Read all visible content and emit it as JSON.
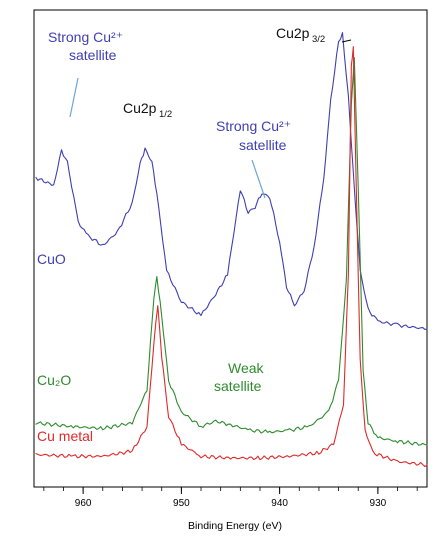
{
  "chart_data": {
    "type": "line",
    "xlabel": "Binding Energy (eV)",
    "xlim": [
      965,
      925
    ],
    "x_reversed": true,
    "x_ticks": [
      960,
      950,
      940,
      930
    ],
    "y_ticks_shown": false,
    "grid": false,
    "legend": "none",
    "series": [
      {
        "name": "CuO",
        "color": "#3f3fb3",
        "points": [
          [
            964.8,
            0.78
          ],
          [
            963.0,
            0.74
          ],
          [
            962.2,
            0.92
          ],
          [
            961.6,
            0.86
          ],
          [
            960.5,
            0.55
          ],
          [
            959.5,
            0.48
          ],
          [
            958.0,
            0.43
          ],
          [
            956.5,
            0.5
          ],
          [
            955.0,
            0.65
          ],
          [
            954.2,
            0.85
          ],
          [
            953.7,
            0.93
          ],
          [
            953.0,
            0.86
          ],
          [
            952.5,
            0.7
          ],
          [
            951.5,
            0.3
          ],
          [
            950.0,
            0.14
          ],
          [
            948.0,
            0.07
          ],
          [
            946.5,
            0.18
          ],
          [
            945.3,
            0.28
          ],
          [
            944.0,
            0.72
          ],
          [
            943.2,
            0.6
          ],
          [
            942.5,
            0.63
          ],
          [
            941.8,
            0.7
          ],
          [
            941.0,
            0.68
          ],
          [
            940.0,
            0.45
          ],
          [
            939.3,
            0.22
          ],
          [
            938.5,
            0.12
          ],
          [
            937.5,
            0.2
          ],
          [
            936.5,
            0.42
          ],
          [
            935.5,
            0.78
          ],
          [
            934.8,
            1.18
          ],
          [
            934.0,
            1.48
          ],
          [
            933.6,
            1.52
          ],
          [
            933.0,
            1.2
          ],
          [
            932.5,
            0.8
          ],
          [
            931.8,
            0.3
          ],
          [
            931.0,
            0.1
          ],
          [
            930.0,
            0.04
          ],
          [
            928.0,
            0.02
          ],
          [
            925.0,
            0.0
          ]
        ]
      },
      {
        "name": "Cu2O",
        "color": "#2e8b2e",
        "points": [
          [
            964.8,
            0.12
          ],
          [
            961.0,
            0.1
          ],
          [
            958.0,
            0.09
          ],
          [
            955.0,
            0.12
          ],
          [
            953.5,
            0.3
          ],
          [
            952.8,
            0.8
          ],
          [
            952.5,
            0.92
          ],
          [
            952.0,
            0.7
          ],
          [
            951.3,
            0.35
          ],
          [
            950.0,
            0.18
          ],
          [
            948.0,
            0.1
          ],
          [
            946.5,
            0.13
          ],
          [
            945.0,
            0.11
          ],
          [
            943.0,
            0.08
          ],
          [
            941.0,
            0.07
          ],
          [
            939.0,
            0.08
          ],
          [
            937.0,
            0.1
          ],
          [
            935.0,
            0.18
          ],
          [
            934.0,
            0.35
          ],
          [
            933.2,
            0.9
          ],
          [
            932.7,
            1.85
          ],
          [
            932.4,
            2.1
          ],
          [
            932.0,
            1.4
          ],
          [
            931.5,
            0.4
          ],
          [
            931.0,
            0.12
          ],
          [
            930.0,
            0.04
          ],
          [
            928.0,
            0.02
          ],
          [
            925.0,
            0.0
          ]
        ]
      },
      {
        "name": "Cu metal",
        "color": "#dd2a2a",
        "points": [
          [
            964.8,
            0.06
          ],
          [
            961.0,
            0.05
          ],
          [
            958.0,
            0.05
          ],
          [
            955.0,
            0.08
          ],
          [
            953.5,
            0.22
          ],
          [
            952.8,
            0.7
          ],
          [
            952.4,
            0.92
          ],
          [
            952.0,
            0.62
          ],
          [
            951.3,
            0.28
          ],
          [
            950.0,
            0.12
          ],
          [
            948.0,
            0.05
          ],
          [
            945.0,
            0.04
          ],
          [
            942.0,
            0.04
          ],
          [
            939.0,
            0.05
          ],
          [
            936.0,
            0.07
          ],
          [
            934.5,
            0.12
          ],
          [
            933.5,
            0.35
          ],
          [
            933.0,
            1.1
          ],
          [
            932.7,
            2.3
          ],
          [
            932.5,
            2.4
          ],
          [
            932.2,
            1.6
          ],
          [
            931.8,
            0.6
          ],
          [
            931.3,
            0.2
          ],
          [
            930.5,
            0.07
          ],
          [
            928.0,
            0.02
          ],
          [
            925.0,
            0.0
          ]
        ]
      }
    ],
    "annotations": [
      {
        "id": "cuo_label",
        "text": "CuO",
        "color": "#3f3fb3"
      },
      {
        "id": "cu2o_label",
        "text": "Cu₂O",
        "color": "#2e8b2e"
      },
      {
        "id": "cumetal_label",
        "text": "Cu metal",
        "color": "#dd2a2a"
      },
      {
        "id": "strong_sat_1_line1",
        "text": "Strong Cu²⁺",
        "color": "#3f3fb3"
      },
      {
        "id": "strong_sat_1_line2",
        "text": "satellite",
        "color": "#3f3fb3"
      },
      {
        "id": "strong_sat_2_line1",
        "text": "Strong Cu²⁺",
        "color": "#3f3fb3"
      },
      {
        "id": "strong_sat_2_line2",
        "text": "satellite",
        "color": "#3f3fb3"
      },
      {
        "id": "weak_sat_line1",
        "text": "Weak",
        "color": "#2e8b2e"
      },
      {
        "id": "weak_sat_line2",
        "text": "satellite",
        "color": "#2e8b2e"
      }
    ],
    "peak_labels": {
      "p12_main": "Cu2p",
      "p12_sub": "1/2",
      "p32_main": "Cu2p",
      "p32_sub": "3/2"
    }
  }
}
